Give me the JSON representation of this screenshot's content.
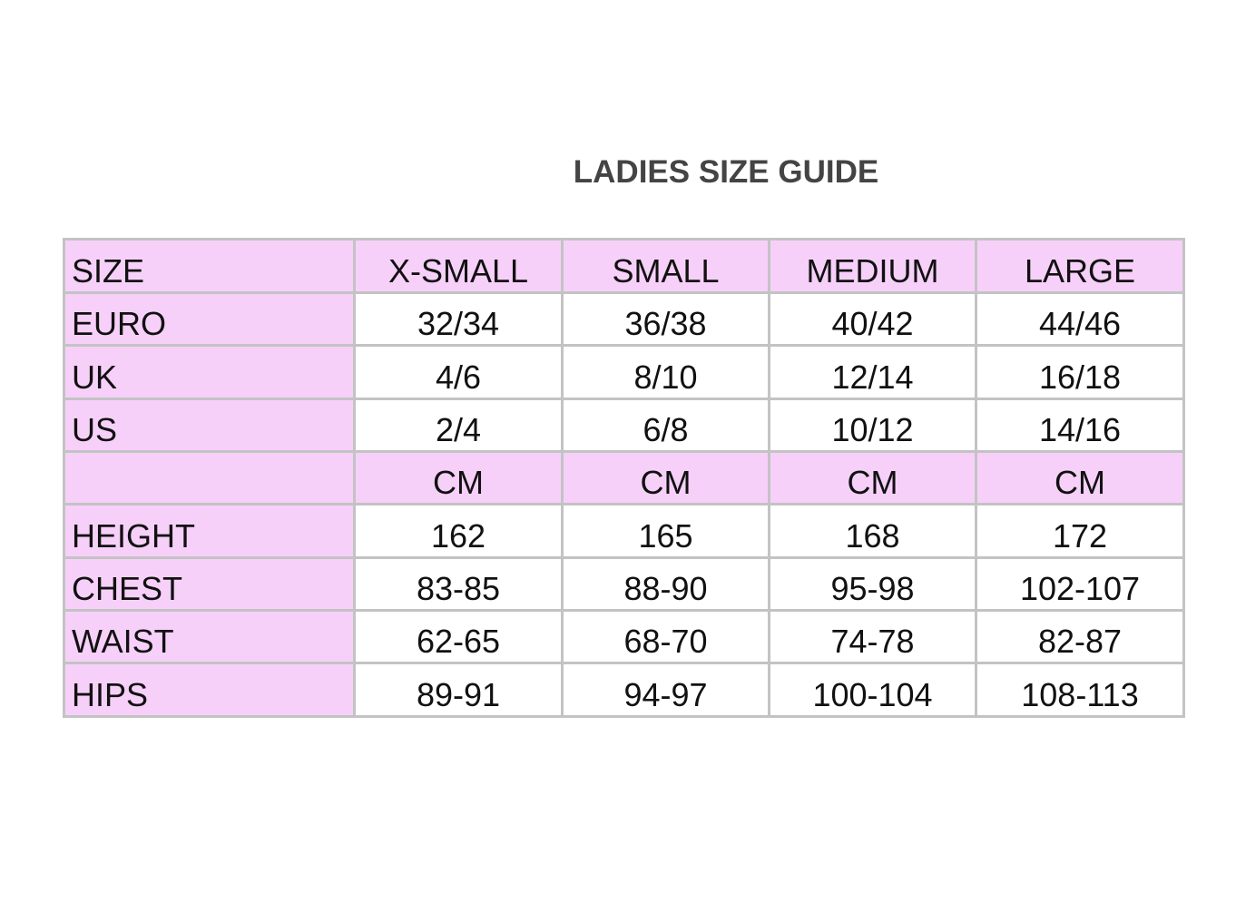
{
  "title": "LADIES SIZE GUIDE",
  "colors": {
    "highlight": "#f7d0fa",
    "border": "#c3c3c3"
  },
  "table": {
    "rows": [
      {
        "label": "SIZE",
        "cells": [
          "X-SMALL",
          "SMALL",
          "MEDIUM",
          "LARGE"
        ],
        "highlight": true
      },
      {
        "label": "EURO",
        "cells": [
          "32/34",
          "36/38",
          "40/42",
          "44/46"
        ],
        "highlight": false
      },
      {
        "label": "UK",
        "cells": [
          "4/6",
          "8/10",
          "12/14",
          "16/18"
        ],
        "highlight": false
      },
      {
        "label": "US",
        "cells": [
          "2/4",
          "6/8",
          "10/12",
          "14/16"
        ],
        "highlight": false
      },
      {
        "label": "",
        "cells": [
          "CM",
          "CM",
          "CM",
          "CM"
        ],
        "highlight": true
      },
      {
        "label": "HEIGHT",
        "cells": [
          "162",
          "165",
          "168",
          "172"
        ],
        "highlight": false
      },
      {
        "label": "CHEST",
        "cells": [
          "83-85",
          "88-90",
          "95-98",
          "102-107"
        ],
        "highlight": false
      },
      {
        "label": "WAIST",
        "cells": [
          "62-65",
          "68-70",
          "74-78",
          "82-87"
        ],
        "highlight": false
      },
      {
        "label": "HIPS",
        "cells": [
          "89-91",
          "94-97",
          "100-104",
          "108-113"
        ],
        "highlight": false
      }
    ]
  }
}
